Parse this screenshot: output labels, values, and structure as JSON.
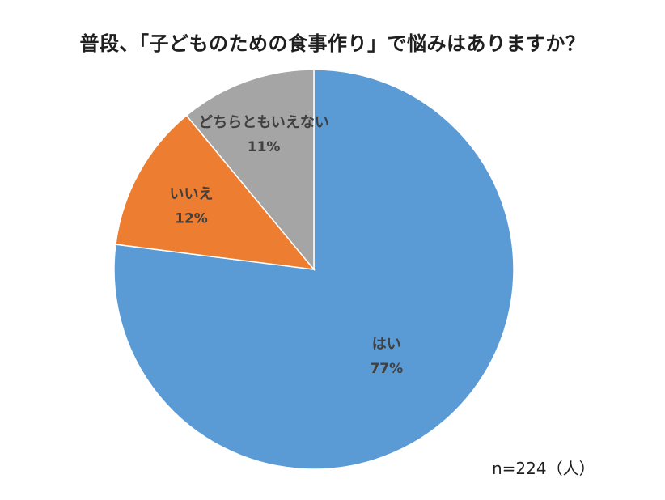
{
  "chart_data": {
    "type": "pie",
    "title": "普段、「子どものための食事作り」で悩みはありますか？",
    "start_angle_deg": 0,
    "direction": "clockwise",
    "slices": [
      {
        "label": "はい",
        "value": 77,
        "value_label": "77%",
        "color": "#5B9BD5"
      },
      {
        "label": "いいえ",
        "value": 12,
        "value_label": "12%",
        "color": "#ED7D31"
      },
      {
        "label": "どちらともいえない",
        "value": 11,
        "value_label": "11%",
        "color": "#A5A5A5"
      }
    ],
    "note": "n=224（人）"
  }
}
